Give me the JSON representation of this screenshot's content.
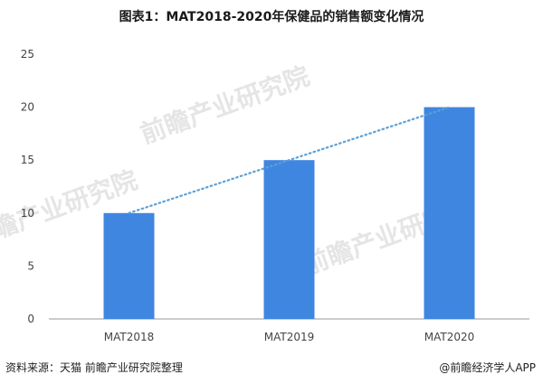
{
  "title": "图表1：MAT2018-2020年保健品的销售额变化情况",
  "source": "资料来源：天猫 前瞻产业研究院整理",
  "brand_footer": "@前瞻经济学人APP",
  "watermark": "前瞻产业研究院",
  "colors": {
    "bar": "#3f86e0",
    "trend": "#5aa0d6",
    "axis": "#999999"
  },
  "chart_data": {
    "type": "bar",
    "categories": [
      "MAT2018",
      "MAT2019",
      "MAT2020"
    ],
    "values": [
      10,
      15,
      20
    ],
    "ylim": [
      0,
      25
    ],
    "yticks": [
      0,
      5,
      10,
      15,
      20,
      25
    ],
    "trendline": "linear-dotted",
    "xlabel": "",
    "ylabel": ""
  }
}
